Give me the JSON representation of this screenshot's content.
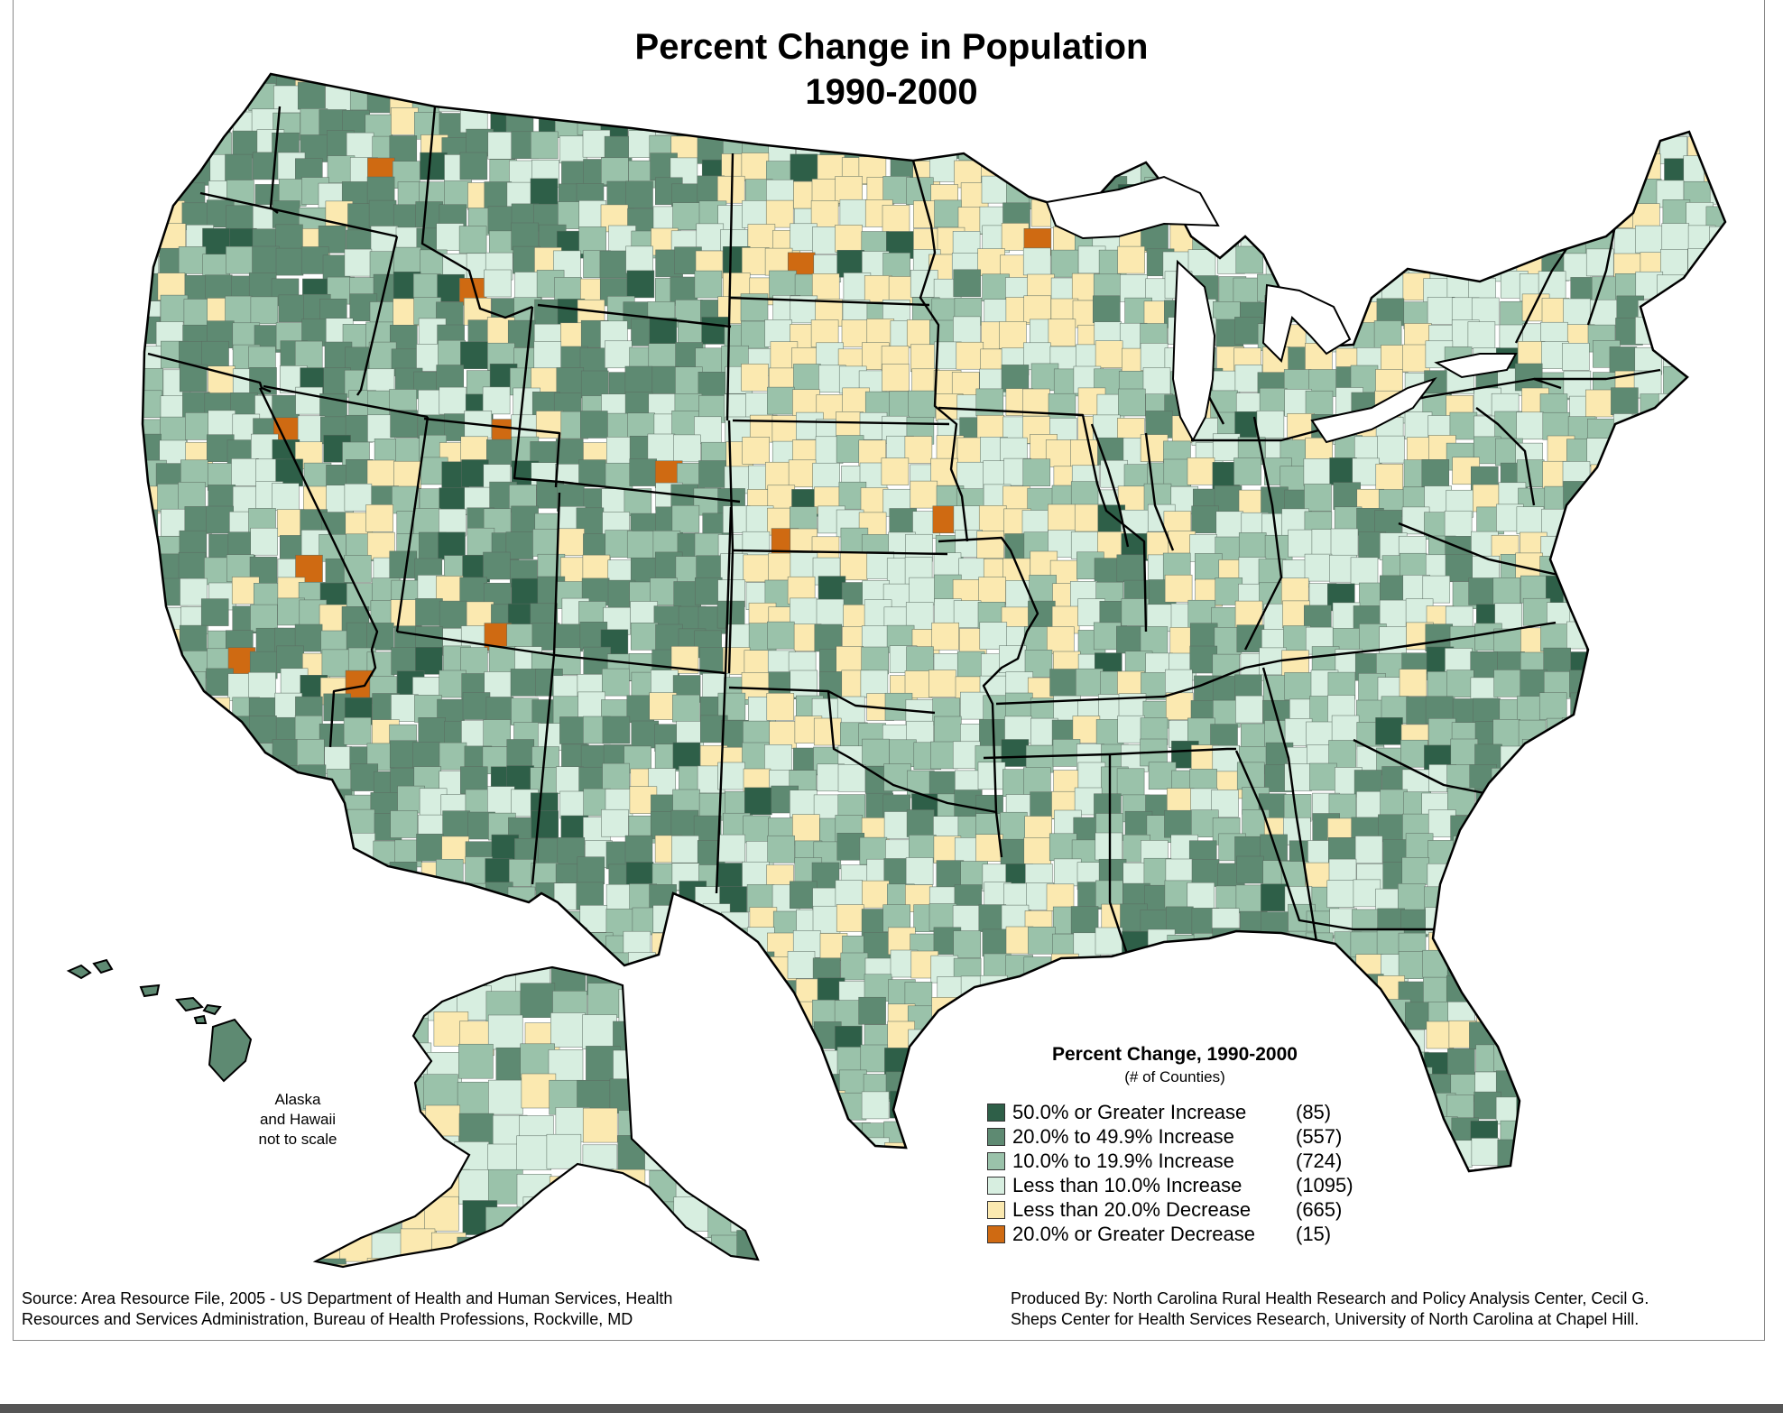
{
  "title_line1": "Percent Change in Population",
  "title_line2": "1990-2000",
  "inset_note": [
    "Alaska",
    "and Hawaii",
    "not to scale"
  ],
  "legend": {
    "title": "Percent Change, 1990-2000",
    "subtitle": "(# of Counties)",
    "items": [
      {
        "label": "50.0% or Greater Increase",
        "count": "(85)",
        "color": "#2e5f48"
      },
      {
        "label": "20.0% to 49.9% Increase",
        "count": "(557)",
        "color": "#5e8a72"
      },
      {
        "label": "10.0% to 19.9% Increase",
        "count": "(724)",
        "color": "#9ac2aa"
      },
      {
        "label": "Less than 10.0% Increase",
        "count": "(1095)",
        "color": "#d7eee0"
      },
      {
        "label": "Less than 20.0% Decrease",
        "count": "(665)",
        "color": "#fbe9b0"
      },
      {
        "label": "20.0% or Greater Decrease",
        "count": "(15)",
        "color": "#cf6a12"
      }
    ]
  },
  "footer": {
    "source_line1": "Source: Area Resource File, 2005 - US Department of Health and Human Services, Health",
    "source_line2": "Resources and Services Administration, Bureau of Health Professions, Rockville, MD",
    "produced_line1": "Produced By: North Carolina Rural Health Research and Policy Analysis Center, Cecil G.",
    "produced_line2": "Sheps Center for Health Services Research, University of North Carolina at Chapel Hill."
  }
}
